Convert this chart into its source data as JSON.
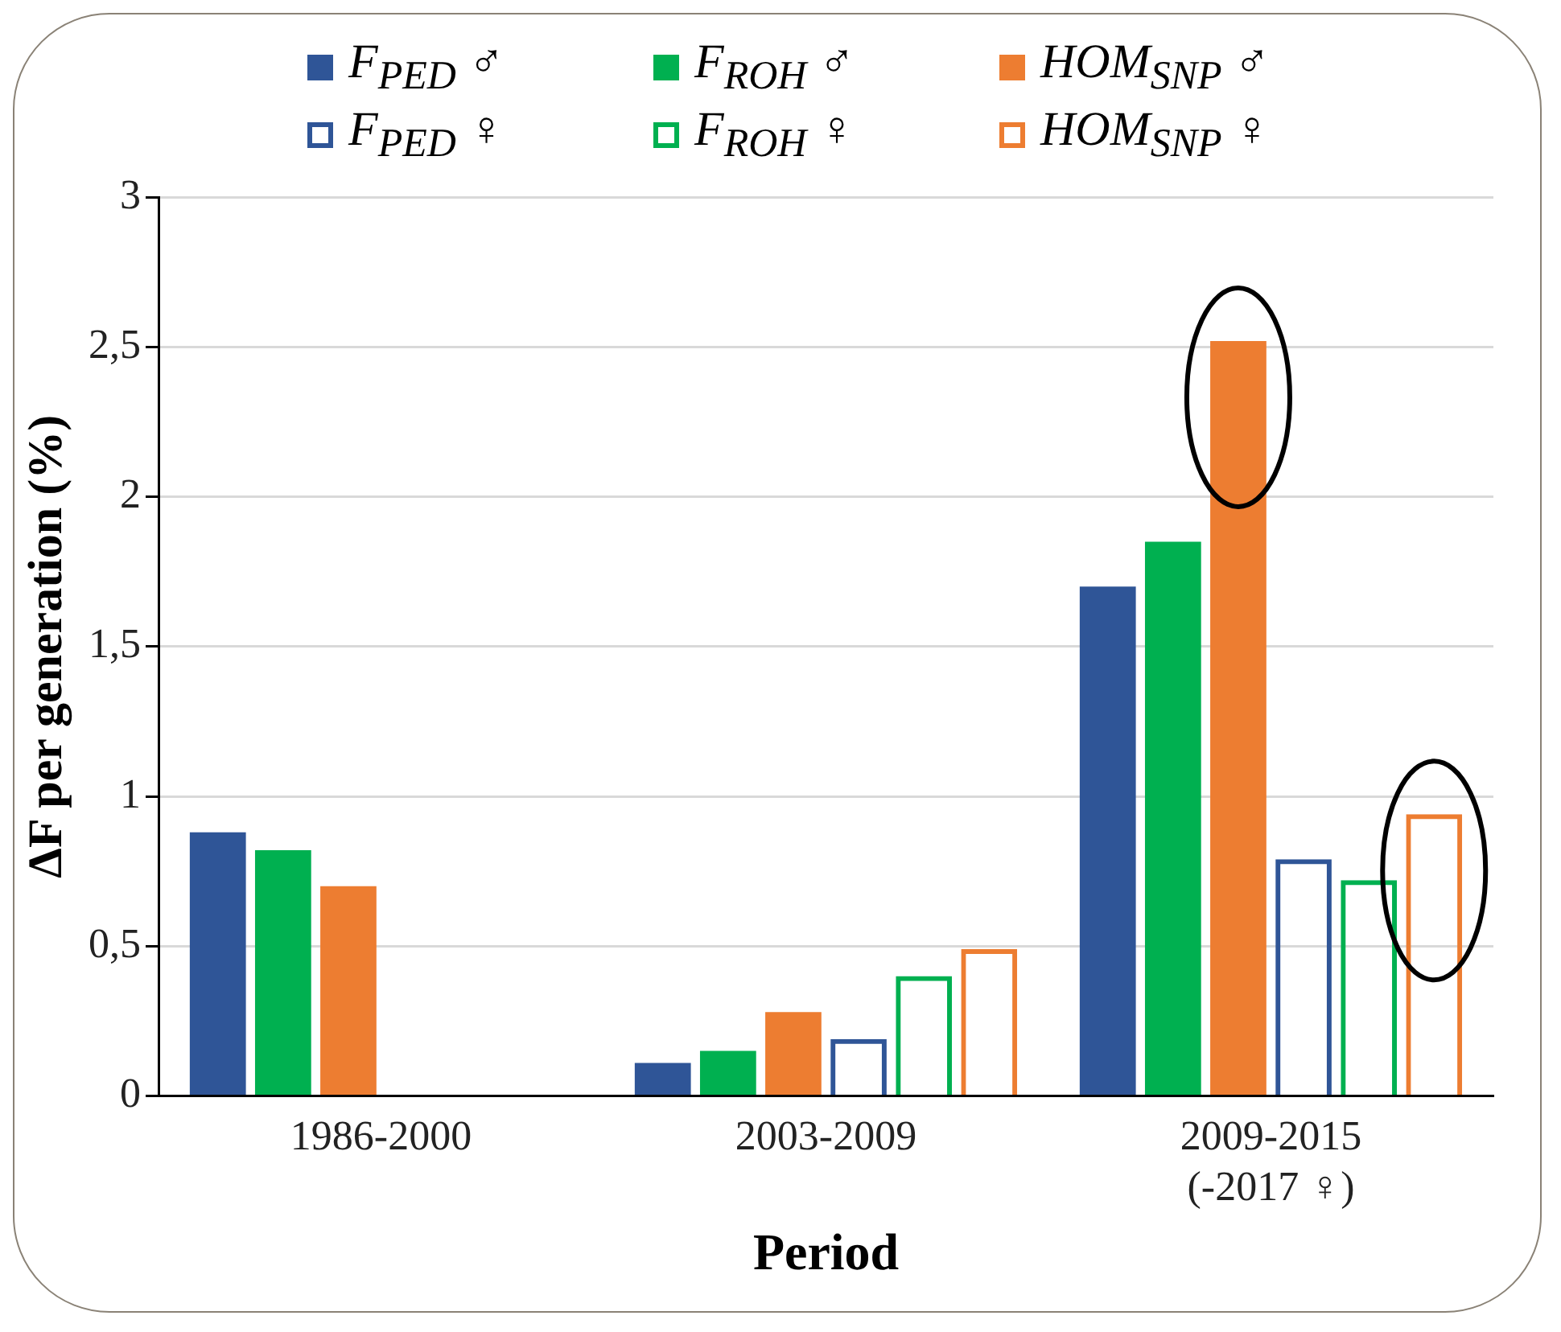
{
  "chart_data": {
    "type": "bar",
    "xlabel": "Period",
    "ylabel": "ΔF per generation (%)",
    "categories": [
      "1986-2000",
      "2003-2009",
      "2009-2015\n(-2017 ♀)"
    ],
    "series": [
      {
        "name": "F$_{PED}$ ♂",
        "color": "#2f5597",
        "values": [
          0.88,
          0.11,
          1.7
        ]
      },
      {
        "name": "F$_{ROH}$ ♂",
        "color": "#00b050",
        "values": [
          0.82,
          0.15,
          1.85
        ]
      },
      {
        "name": "HOM$_{SNP}$ ♂",
        "color": "#ed7d31",
        "values": [
          0.7,
          0.28,
          2.52
        ]
      },
      {
        "name": "F$_{PED}$ ♀",
        "color": "#2f5597",
        "values": [
          null,
          0.19,
          0.79
        ]
      },
      {
        "name": "F$_{ROH}$ ♀",
        "color": "#00b050",
        "values": [
          null,
          0.4,
          0.72
        ]
      },
      {
        "name": "HOM$_{SNP}$ ♀",
        "color": "#ed7d31",
        "values": [
          null,
          0.49,
          0.94
        ]
      }
    ],
    "ylim": [
      0,
      3
    ],
    "yticks": [
      0,
      {
        "value": 0.5,
        "label": "0,5"
      },
      1,
      {
        "value": 1.5,
        "label": "1,5"
      },
      2,
      {
        "value": 2.5,
        "label": "2,5"
      },
      3
    ],
    "grid": "y",
    "legend": "top"
  }
}
